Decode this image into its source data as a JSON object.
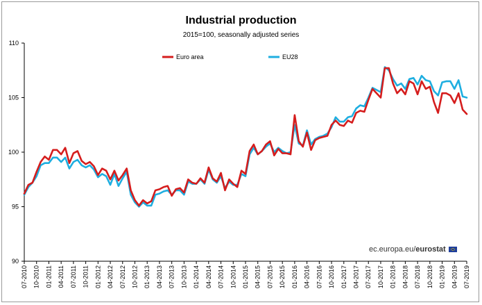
{
  "colors": {
    "euro_area": "#d51d1d",
    "eu28": "#1eaee0",
    "axis": "#000000"
  },
  "credit": {
    "site": "ec.europa.eu/",
    "brand": "eurostat",
    "logo": "eu-flag-icon"
  },
  "chart_data": {
    "type": "line",
    "title": "Industrial production",
    "subtitle": "2015=100, seasonally adjusted series",
    "xlabel": "",
    "ylabel": "",
    "ylim": [
      90,
      110
    ],
    "yticks": [
      90,
      95,
      100,
      105,
      110
    ],
    "grid": false,
    "legend_position": "top",
    "x": [
      "2010-07",
      "2010-08",
      "2010-09",
      "2010-10",
      "2010-11",
      "2010-12",
      "2011-01",
      "2011-02",
      "2011-03",
      "2011-04",
      "2011-05",
      "2011-06",
      "2011-07",
      "2011-08",
      "2011-09",
      "2011-10",
      "2011-11",
      "2011-12",
      "2012-01",
      "2012-02",
      "2012-03",
      "2012-04",
      "2012-05",
      "2012-06",
      "2012-07",
      "2012-08",
      "2012-09",
      "2012-10",
      "2012-11",
      "2012-12",
      "2013-01",
      "2013-02",
      "2013-03",
      "2013-04",
      "2013-05",
      "2013-06",
      "2013-07",
      "2013-08",
      "2013-09",
      "2013-10",
      "2013-11",
      "2013-12",
      "2014-01",
      "2014-02",
      "2014-03",
      "2014-04",
      "2014-05",
      "2014-06",
      "2014-07",
      "2014-08",
      "2014-09",
      "2014-10",
      "2014-11",
      "2014-12",
      "2015-01",
      "2015-02",
      "2015-03",
      "2015-04",
      "2015-05",
      "2015-06",
      "2015-07",
      "2015-08",
      "2015-09",
      "2015-10",
      "2015-11",
      "2015-12",
      "2016-01",
      "2016-02",
      "2016-03",
      "2016-04",
      "2016-05",
      "2016-06",
      "2016-07",
      "2016-08",
      "2016-09",
      "2016-10",
      "2016-11",
      "2016-12",
      "2017-01",
      "2017-02",
      "2017-03",
      "2017-04",
      "2017-05",
      "2017-06",
      "2017-07",
      "2017-08",
      "2017-09",
      "2017-10",
      "2017-11",
      "2017-12",
      "2018-01",
      "2018-02",
      "2018-03",
      "2018-04",
      "2018-05",
      "2018-06",
      "2018-07",
      "2018-08",
      "2018-09",
      "2018-10",
      "2018-11",
      "2018-12",
      "2019-01",
      "2019-02",
      "2019-03",
      "2019-04",
      "2019-05",
      "2019-06",
      "2019-07"
    ],
    "tick_labels": [
      "07-2010",
      "10-2010",
      "01-2011",
      "04-2011",
      "07-2011",
      "10-2011",
      "01-2012",
      "04-2012",
      "07-2012",
      "10-2012",
      "01-2013",
      "04-2013",
      "07-2013",
      "10-2013",
      "01-2014",
      "04-2014",
      "07-2014",
      "10-2014",
      "01-2015",
      "04-2015",
      "07-2015",
      "10-2015",
      "01-2016",
      "04-2016",
      "07-2016",
      "10-2016",
      "01-2017",
      "04-2017",
      "07-2017",
      "10-2017",
      "01-2018",
      "04-2018",
      "07-2018",
      "10-2018",
      "01-2019",
      "04-2019",
      "07-2019"
    ],
    "series": [
      {
        "name": "Euro area",
        "color": "#d51d1d",
        "values": [
          96.2,
          97.0,
          97.2,
          98.2,
          99.1,
          99.6,
          99.3,
          100.2,
          100.2,
          99.8,
          100.4,
          99.0,
          99.9,
          100.1,
          99.2,
          98.9,
          99.1,
          98.7,
          97.9,
          98.5,
          98.3,
          97.5,
          98.3,
          97.4,
          97.9,
          98.5,
          96.5,
          95.6,
          95.1,
          95.6,
          95.3,
          95.5,
          96.5,
          96.6,
          96.8,
          96.9,
          96.0,
          96.6,
          96.7,
          96.3,
          97.5,
          97.2,
          97.1,
          97.6,
          97.2,
          98.6,
          97.6,
          97.3,
          98.1,
          96.5,
          97.5,
          97.1,
          96.8,
          98.3,
          98.0,
          100.1,
          100.7,
          99.8,
          100.1,
          100.7,
          101.0,
          99.7,
          100.3,
          99.9,
          99.9,
          99.8,
          103.4,
          101.0,
          100.5,
          101.8,
          100.2,
          101.1,
          101.3,
          101.4,
          101.5,
          102.5,
          102.9,
          102.5,
          102.4,
          102.9,
          102.7,
          103.6,
          103.8,
          103.7,
          104.8,
          105.8,
          105.4,
          105.0,
          107.7,
          107.7,
          106.3,
          105.4,
          105.8,
          105.3,
          106.5,
          106.3,
          105.3,
          106.5,
          105.8,
          106.0,
          104.6,
          103.6,
          105.4,
          105.4,
          105.2,
          104.5,
          105.4,
          103.9,
          103.5
        ]
      },
      {
        "name": "EU28",
        "color": "#1eaee0",
        "values": [
          96.1,
          96.8,
          97.2,
          97.8,
          98.8,
          99.0,
          99.0,
          99.5,
          99.5,
          99.1,
          99.5,
          98.5,
          99.1,
          99.3,
          98.8,
          98.6,
          98.8,
          98.4,
          97.7,
          98.0,
          97.8,
          97.0,
          98.0,
          96.9,
          97.6,
          98.2,
          96.1,
          95.4,
          95.0,
          95.4,
          95.1,
          95.1,
          96.1,
          96.2,
          96.4,
          96.5,
          96.1,
          96.5,
          96.5,
          96.1,
          97.3,
          97.1,
          97.1,
          97.5,
          97.1,
          98.4,
          97.5,
          97.2,
          97.8,
          96.7,
          97.3,
          97.0,
          97.0,
          98.0,
          97.8,
          99.8,
          100.4,
          99.8,
          100.1,
          100.5,
          100.8,
          100.0,
          100.4,
          100.1,
          99.9,
          100.0,
          102.5,
          100.8,
          100.6,
          102.0,
          100.7,
          101.2,
          101.4,
          101.5,
          101.7,
          102.3,
          103.2,
          102.8,
          102.8,
          103.2,
          103.3,
          104.0,
          104.3,
          104.2,
          105.0,
          105.9,
          105.7,
          105.5,
          107.8,
          107.5,
          106.7,
          106.1,
          106.3,
          105.8,
          106.7,
          106.8,
          106.2,
          107.0,
          106.6,
          106.5,
          105.6,
          105.2,
          106.4,
          106.5,
          106.5,
          105.8,
          106.6,
          105.1,
          105.0
        ]
      }
    ]
  }
}
